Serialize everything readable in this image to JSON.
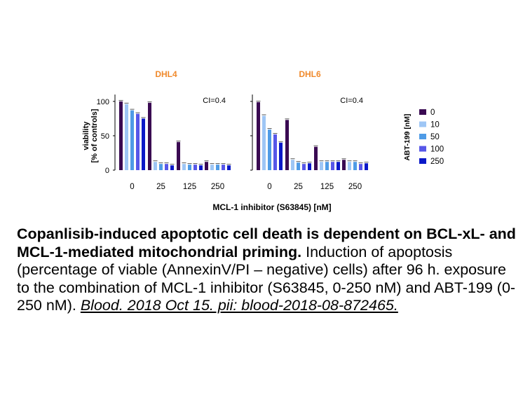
{
  "chart_data": {
    "type": "bar",
    "xlabel": "MCL-1 inhibitor (S63845) [nM]",
    "ylabel": "viability\n[% of controls]",
    "ylim": [
      0,
      110
    ],
    "yticks": [
      0,
      50,
      100
    ],
    "categories": [
      "0",
      "25",
      "125",
      "250"
    ],
    "legend": {
      "title": "ABT-199 [nM]",
      "placement": "right",
      "entries": [
        "0",
        "10",
        "50",
        "100",
        "250"
      ]
    },
    "series_colors": [
      "#3a0a52",
      "#9ec6f5",
      "#4f9be6",
      "#5757e8",
      "#0a18c8"
    ],
    "panels": [
      {
        "title": "DHL4",
        "annotation": "CI=0.4",
        "series": [
          {
            "name": "0",
            "values": [
              100,
              98,
              41,
              12
            ]
          },
          {
            "name": "10",
            "values": [
              96,
              12,
              9,
              8
            ]
          },
          {
            "name": "50",
            "values": [
              87,
              9,
              8,
              8
            ]
          },
          {
            "name": "100",
            "values": [
              82,
              9,
              8,
              8
            ]
          },
          {
            "name": "250",
            "values": [
              75,
              7,
              7,
              7
            ]
          }
        ]
      },
      {
        "title": "DHL6",
        "annotation": "CI=0.4",
        "series": [
          {
            "name": "0",
            "values": [
              99,
              73,
              34,
              15
            ]
          },
          {
            "name": "10",
            "values": [
              79,
              15,
              12,
              12
            ]
          },
          {
            "name": "50",
            "values": [
              59,
              11,
              12,
              12
            ]
          },
          {
            "name": "100",
            "values": [
              52,
              9,
              12,
              9
            ]
          },
          {
            "name": "250",
            "values": [
              40,
              10,
              12,
              10
            ]
          }
        ]
      }
    ]
  },
  "caption": {
    "title": "Copanlisib-induced apoptotic cell death is dependent on BCL-xL- and MCL-1-mediated mitochondrial priming.",
    "body": " Induction of apoptosis (percentage of viable (AnnexinV/PI – negative) cells) after 96 h. exposure to the combination of MCL-1 inhibitor (S63845, 0-250 nM) and ABT-199 (0-250 nM). ",
    "citation": "Blood. 2018 Oct 15. pii: blood-2018-08-872465."
  }
}
